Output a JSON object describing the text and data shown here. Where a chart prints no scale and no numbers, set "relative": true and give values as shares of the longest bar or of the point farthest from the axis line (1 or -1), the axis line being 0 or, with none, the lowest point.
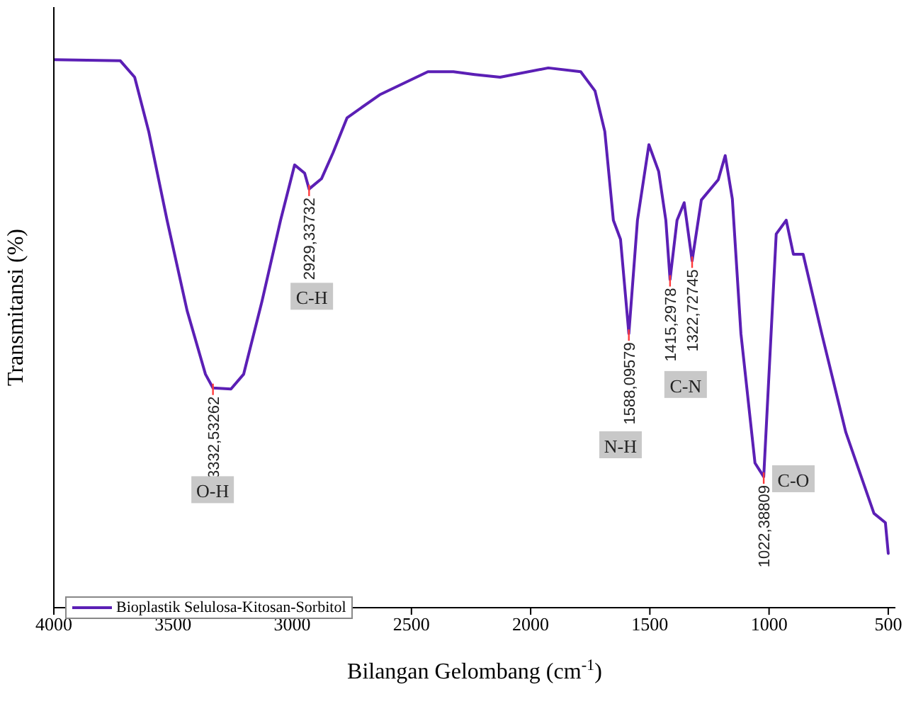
{
  "chart_data": {
    "type": "line",
    "xlabel": "Bilangan Gelombang (cm$^{-1}$)",
    "ylabel": "Transmitansi (%)",
    "relative": true,
    "xlim": [
      4000,
      470
    ],
    "xticks": [
      4000,
      3500,
      3000,
      2500,
      2000,
      1500,
      1000,
      500
    ],
    "legend": "bottom left",
    "grid": false,
    "marker": "none",
    "line_style": "solid",
    "series": [
      {
        "name": "Bioplastik Selulosa-Kitosan-Sorbitol",
        "color": "#5b1fb5",
        "x": [
          4000,
          3721,
          3661,
          3602,
          3525,
          3441,
          3364,
          3332.53262,
          3257,
          3204,
          3127,
          3049,
          2990,
          2948,
          2929.33732,
          2877,
          2829,
          2770,
          2633,
          2431,
          2324,
          2235,
          2128,
          1926,
          1790,
          1730,
          1689,
          1653,
          1623,
          1588.09579,
          1552,
          1504,
          1463,
          1433,
          1415.2978,
          1386,
          1356,
          1322.72745,
          1284,
          1213,
          1184,
          1154,
          1118,
          1059,
          1022.38809,
          970,
          928,
          898,
          857,
          779,
          678,
          560,
          512,
          500
        ],
        "values": [
          1.0,
          0.998,
          0.968,
          0.869,
          0.707,
          0.542,
          0.426,
          0.401,
          0.399,
          0.426,
          0.559,
          0.707,
          0.808,
          0.793,
          0.764,
          0.783,
          0.83,
          0.894,
          0.936,
          0.978,
          0.978,
          0.973,
          0.968,
          0.985,
          0.978,
          0.943,
          0.869,
          0.707,
          0.672,
          0.5,
          0.707,
          0.845,
          0.796,
          0.707,
          0.599,
          0.707,
          0.739,
          0.633,
          0.744,
          0.781,
          0.825,
          0.746,
          0.5,
          0.264,
          0.239,
          0.682,
          0.707,
          0.645,
          0.645,
          0.5,
          0.32,
          0.172,
          0.155,
          0.099
        ]
      }
    ],
    "annotations": [
      {
        "text": "3332,53262",
        "x": 3332.53262,
        "y": 0.401
      },
      {
        "text": "2929,33732",
        "x": 2929.33732,
        "y": 0.764
      },
      {
        "text": "1588,09579",
        "x": 1588.09579,
        "y": 0.5
      },
      {
        "text": "1415,2978",
        "x": 1415.2978,
        "y": 0.599
      },
      {
        "text": "1322,72745",
        "x": 1322.72745,
        "y": 0.633
      },
      {
        "text": "1022,38809",
        "x": 1022.38809,
        "y": 0.239
      },
      {
        "text": "O-H",
        "x": 3334,
        "y": 0.214
      },
      {
        "text": "C-H",
        "x": 2918,
        "y": 0.567
      },
      {
        "text": "N-H",
        "x": 1623,
        "y": 0.296
      },
      {
        "text": "C-N",
        "x": 1350,
        "y": 0.406
      },
      {
        "text": "C-O",
        "x": 898,
        "y": 0.234
      }
    ]
  }
}
